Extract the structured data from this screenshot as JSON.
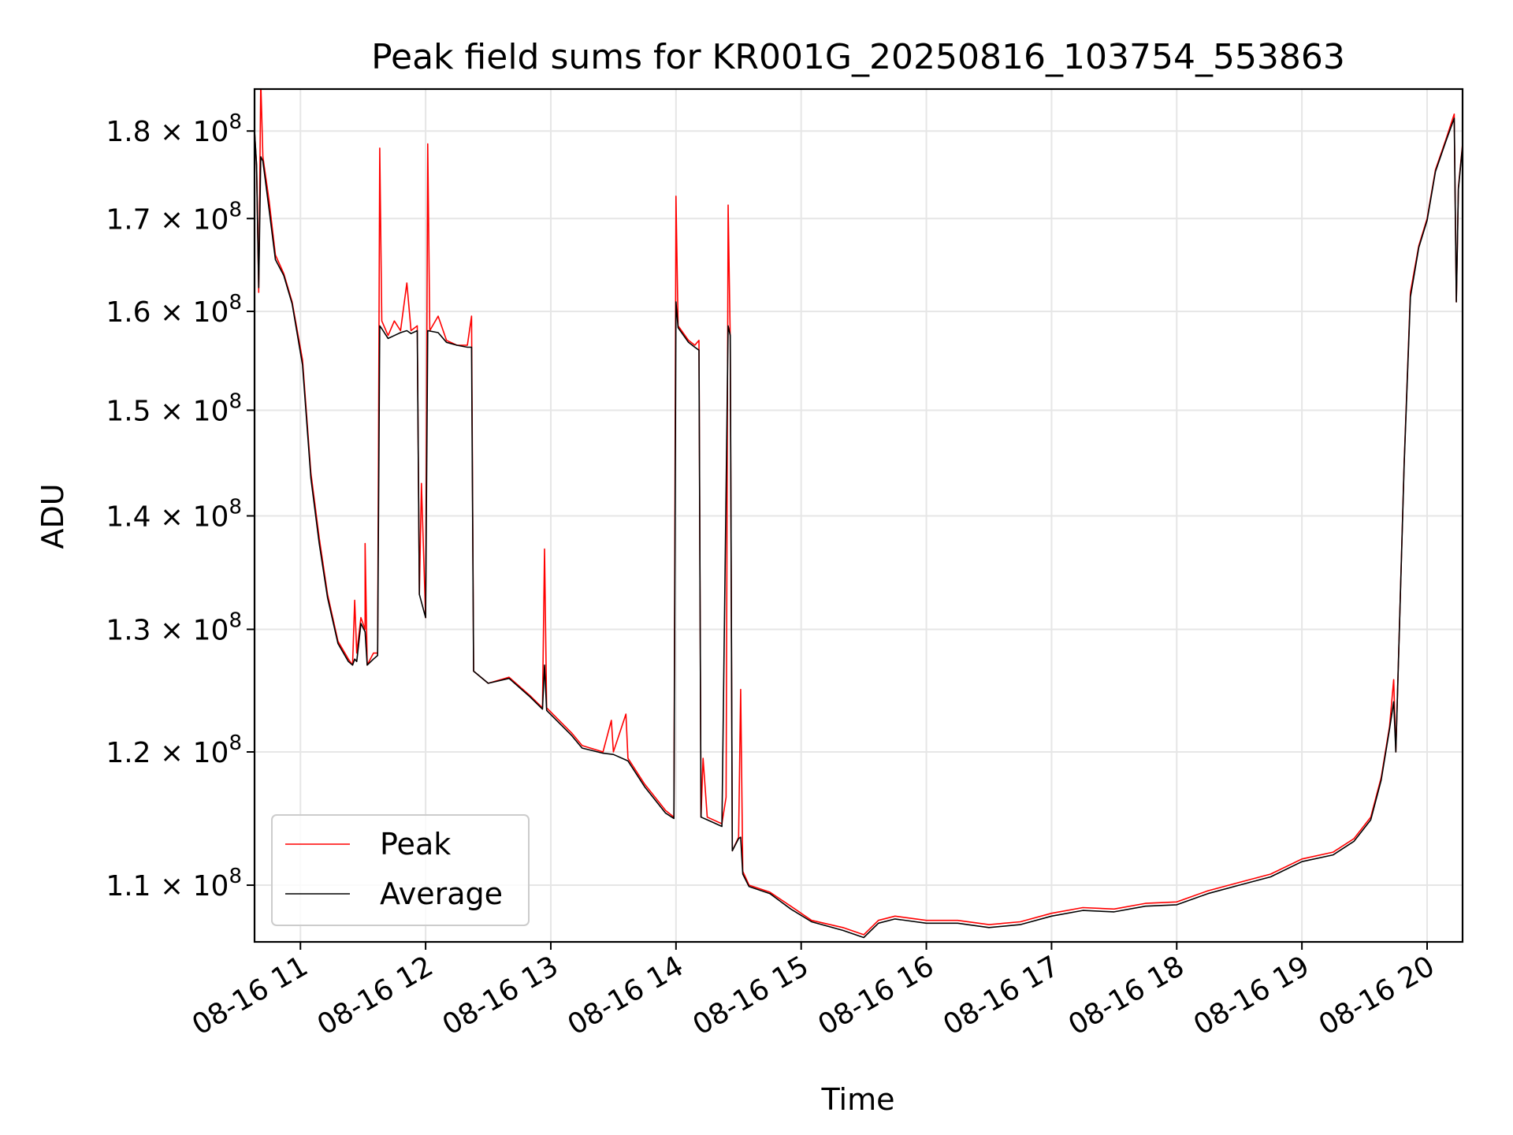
{
  "chart_data": {
    "type": "line",
    "title": "Peak field sums for KR001G_20250816_103754_553863",
    "xlabel": "Time",
    "ylabel": "ADU",
    "xlim": [
      "2025-08-16 10:38",
      "2025-08-16 20:17"
    ],
    "ylim": [
      106000000,
      185000000
    ],
    "yscale": "log",
    "grid": true,
    "legend_position": "lower-left",
    "x_ticks": [
      {
        "time": "2025-08-16 11:00",
        "label": "08-16 11"
      },
      {
        "time": "2025-08-16 12:00",
        "label": "08-16 12"
      },
      {
        "time": "2025-08-16 13:00",
        "label": "08-16 13"
      },
      {
        "time": "2025-08-16 14:00",
        "label": "08-16 14"
      },
      {
        "time": "2025-08-16 15:00",
        "label": "08-16 15"
      },
      {
        "time": "2025-08-16 16:00",
        "label": "08-16 16"
      },
      {
        "time": "2025-08-16 17:00",
        "label": "08-16 17"
      },
      {
        "time": "2025-08-16 18:00",
        "label": "08-16 18"
      },
      {
        "time": "2025-08-16 19:00",
        "label": "08-16 19"
      },
      {
        "time": "2025-08-16 20:00",
        "label": "08-16 20"
      }
    ],
    "y_ticks": [
      {
        "value": 110000000,
        "mantissa": "1.1",
        "exponent": "8"
      },
      {
        "value": 120000000,
        "mantissa": "1.2",
        "exponent": "8"
      },
      {
        "value": 130000000,
        "mantissa": "1.3",
        "exponent": "8"
      },
      {
        "value": 140000000,
        "mantissa": "1.4",
        "exponent": "8"
      },
      {
        "value": 150000000,
        "mantissa": "1.5",
        "exponent": "8"
      },
      {
        "value": 160000000,
        "mantissa": "1.6",
        "exponent": "8"
      },
      {
        "value": 170000000,
        "mantissa": "1.7",
        "exponent": "8"
      },
      {
        "value": 180000000,
        "mantissa": "1.8",
        "exponent": "8"
      }
    ],
    "series": [
      {
        "name": "Peak",
        "color": "#ff0000",
        "points": [
          [
            "2025-08-16 10:38",
            180000000
          ],
          [
            "2025-08-16 10:39",
            176000000
          ],
          [
            "2025-08-16 10:40",
            162000000
          ],
          [
            "2025-08-16 10:41",
            186000000
          ],
          [
            "2025-08-16 10:42",
            177000000
          ],
          [
            "2025-08-16 10:45",
            172000000
          ],
          [
            "2025-08-16 10:48",
            166000000
          ],
          [
            "2025-08-16 10:52",
            164000000
          ],
          [
            "2025-08-16 10:56",
            161000000
          ],
          [
            "2025-08-16 11:01",
            155000000
          ],
          [
            "2025-08-16 11:05",
            144000000
          ],
          [
            "2025-08-16 11:09",
            138000000
          ],
          [
            "2025-08-16 11:13",
            133000000
          ],
          [
            "2025-08-16 11:18",
            129000000
          ],
          [
            "2025-08-16 11:23",
            127500000
          ],
          [
            "2025-08-16 11:25",
            127000000
          ],
          [
            "2025-08-16 11:26",
            132500000
          ],
          [
            "2025-08-16 11:27",
            128000000
          ],
          [
            "2025-08-16 11:29",
            131000000
          ],
          [
            "2025-08-16 11:31",
            130000000
          ],
          [
            "2025-08-16 11:31",
            137500000
          ],
          [
            "2025-08-16 11:32",
            127000000
          ],
          [
            "2025-08-16 11:35",
            128000000
          ],
          [
            "2025-08-16 11:37",
            128000000
          ],
          [
            "2025-08-16 11:38",
            178000000
          ],
          [
            "2025-08-16 11:39",
            159000000
          ],
          [
            "2025-08-16 11:42",
            157500000
          ],
          [
            "2025-08-16 11:45",
            159000000
          ],
          [
            "2025-08-16 11:48",
            158000000
          ],
          [
            "2025-08-16 11:51",
            163000000
          ],
          [
            "2025-08-16 11:53",
            158000000
          ],
          [
            "2025-08-16 11:56",
            158500000
          ],
          [
            "2025-08-16 11:57",
            133000000
          ],
          [
            "2025-08-16 11:58",
            143000000
          ],
          [
            "2025-08-16 12:00",
            131000000
          ],
          [
            "2025-08-16 12:01",
            178500000
          ],
          [
            "2025-08-16 12:02",
            158000000
          ],
          [
            "2025-08-16 12:06",
            159500000
          ],
          [
            "2025-08-16 12:10",
            157000000
          ],
          [
            "2025-08-16 12:15",
            156500000
          ],
          [
            "2025-08-16 12:20",
            156500000
          ],
          [
            "2025-08-16 12:22",
            159500000
          ],
          [
            "2025-08-16 12:23",
            126500000
          ],
          [
            "2025-08-16 12:30",
            125500000
          ],
          [
            "2025-08-16 12:40",
            126000000
          ],
          [
            "2025-08-16 12:50",
            124500000
          ],
          [
            "2025-08-16 12:56",
            123500000
          ],
          [
            "2025-08-16 12:57",
            137000000
          ],
          [
            "2025-08-16 12:58",
            123500000
          ],
          [
            "2025-08-16 13:10",
            121500000
          ],
          [
            "2025-08-16 13:15",
            120500000
          ],
          [
            "2025-08-16 13:25",
            120000000
          ],
          [
            "2025-08-16 13:29",
            122500000
          ],
          [
            "2025-08-16 13:30",
            120000000
          ],
          [
            "2025-08-16 13:36",
            123000000
          ],
          [
            "2025-08-16 13:37",
            119500000
          ],
          [
            "2025-08-16 13:45",
            117500000
          ],
          [
            "2025-08-16 13:55",
            115500000
          ],
          [
            "2025-08-16 13:59",
            115000000
          ],
          [
            "2025-08-16 14:00",
            172500000
          ],
          [
            "2025-08-16 14:01",
            158500000
          ],
          [
            "2025-08-16 14:06",
            157000000
          ],
          [
            "2025-08-16 14:09",
            156500000
          ],
          [
            "2025-08-16 14:11",
            157000000
          ],
          [
            "2025-08-16 14:12",
            115000000
          ],
          [
            "2025-08-16 14:13",
            119500000
          ],
          [
            "2025-08-16 14:15",
            115000000
          ],
          [
            "2025-08-16 14:22",
            114500000
          ],
          [
            "2025-08-16 14:24",
            116500000
          ],
          [
            "2025-08-16 14:25",
            171500000
          ],
          [
            "2025-08-16 14:26",
            157000000
          ],
          [
            "2025-08-16 14:27",
            112500000
          ],
          [
            "2025-08-16 14:30",
            113500000
          ],
          [
            "2025-08-16 14:31",
            125000000
          ],
          [
            "2025-08-16 14:32",
            111000000
          ],
          [
            "2025-08-16 14:35",
            110000000
          ],
          [
            "2025-08-16 14:45",
            109500000
          ],
          [
            "2025-08-16 14:55",
            108500000
          ],
          [
            "2025-08-16 15:05",
            107500000
          ],
          [
            "2025-08-16 15:20",
            107000000
          ],
          [
            "2025-08-16 15:30",
            106500000
          ],
          [
            "2025-08-16 15:37",
            107500000
          ],
          [
            "2025-08-16 15:45",
            107800000
          ],
          [
            "2025-08-16 16:00",
            107500000
          ],
          [
            "2025-08-16 16:15",
            107500000
          ],
          [
            "2025-08-16 16:30",
            107200000
          ],
          [
            "2025-08-16 16:45",
            107400000
          ],
          [
            "2025-08-16 17:00",
            108000000
          ],
          [
            "2025-08-16 17:15",
            108400000
          ],
          [
            "2025-08-16 17:30",
            108300000
          ],
          [
            "2025-08-16 17:45",
            108700000
          ],
          [
            "2025-08-16 18:00",
            108800000
          ],
          [
            "2025-08-16 18:15",
            109600000
          ],
          [
            "2025-08-16 18:30",
            110200000
          ],
          [
            "2025-08-16 18:45",
            110800000
          ],
          [
            "2025-08-16 19:00",
            111900000
          ],
          [
            "2025-08-16 19:15",
            112400000
          ],
          [
            "2025-08-16 19:25",
            113400000
          ],
          [
            "2025-08-16 19:33",
            115000000
          ],
          [
            "2025-08-16 19:38",
            118000000
          ],
          [
            "2025-08-16 19:42",
            122000000
          ],
          [
            "2025-08-16 19:44",
            125800000
          ],
          [
            "2025-08-16 19:45",
            120000000
          ],
          [
            "2025-08-16 19:49",
            145000000
          ],
          [
            "2025-08-16 19:52",
            162000000
          ],
          [
            "2025-08-16 19:56",
            167000000
          ],
          [
            "2025-08-16 20:00",
            170000000
          ],
          [
            "2025-08-16 20:04",
            175500000
          ],
          [
            "2025-08-16 20:09",
            179000000
          ],
          [
            "2025-08-16 20:13",
            182000000
          ],
          [
            "2025-08-16 20:14",
            161000000
          ],
          [
            "2025-08-16 20:15",
            173500000
          ],
          [
            "2025-08-16 20:17",
            178500000
          ]
        ]
      },
      {
        "name": "Average",
        "color": "#000000",
        "points": [
          [
            "2025-08-16 10:38",
            180000000
          ],
          [
            "2025-08-16 10:39",
            176000000
          ],
          [
            "2025-08-16 10:40",
            162500000
          ],
          [
            "2025-08-16 10:41",
            177000000
          ],
          [
            "2025-08-16 10:42",
            176500000
          ],
          [
            "2025-08-16 10:45",
            171000000
          ],
          [
            "2025-08-16 10:48",
            165500000
          ],
          [
            "2025-08-16 10:52",
            163800000
          ],
          [
            "2025-08-16 10:56",
            160800000
          ],
          [
            "2025-08-16 11:01",
            154500000
          ],
          [
            "2025-08-16 11:05",
            143500000
          ],
          [
            "2025-08-16 11:09",
            137500000
          ],
          [
            "2025-08-16 11:13",
            132700000
          ],
          [
            "2025-08-16 11:18",
            128800000
          ],
          [
            "2025-08-16 11:23",
            127300000
          ],
          [
            "2025-08-16 11:25",
            127000000
          ],
          [
            "2025-08-16 11:26",
            127500000
          ],
          [
            "2025-08-16 11:27",
            127300000
          ],
          [
            "2025-08-16 11:29",
            130500000
          ],
          [
            "2025-08-16 11:31",
            129800000
          ],
          [
            "2025-08-16 11:32",
            127000000
          ],
          [
            "2025-08-16 11:35",
            127500000
          ],
          [
            "2025-08-16 11:37",
            127800000
          ],
          [
            "2025-08-16 11:38",
            158500000
          ],
          [
            "2025-08-16 11:39",
            158200000
          ],
          [
            "2025-08-16 11:42",
            157200000
          ],
          [
            "2025-08-16 11:45",
            157500000
          ],
          [
            "2025-08-16 11:48",
            157800000
          ],
          [
            "2025-08-16 11:51",
            158000000
          ],
          [
            "2025-08-16 11:53",
            157700000
          ],
          [
            "2025-08-16 11:56",
            158000000
          ],
          [
            "2025-08-16 11:57",
            133000000
          ],
          [
            "2025-08-16 12:00",
            131000000
          ],
          [
            "2025-08-16 12:01",
            158000000
          ],
          [
            "2025-08-16 12:06",
            157800000
          ],
          [
            "2025-08-16 12:10",
            156800000
          ],
          [
            "2025-08-16 12:15",
            156500000
          ],
          [
            "2025-08-16 12:20",
            156300000
          ],
          [
            "2025-08-16 12:22",
            156300000
          ],
          [
            "2025-08-16 12:23",
            126500000
          ],
          [
            "2025-08-16 12:30",
            125500000
          ],
          [
            "2025-08-16 12:40",
            125900000
          ],
          [
            "2025-08-16 12:50",
            124400000
          ],
          [
            "2025-08-16 12:56",
            123400000
          ],
          [
            "2025-08-16 12:57",
            127000000
          ],
          [
            "2025-08-16 12:58",
            123300000
          ],
          [
            "2025-08-16 13:10",
            121300000
          ],
          [
            "2025-08-16 13:15",
            120300000
          ],
          [
            "2025-08-16 13:25",
            119900000
          ],
          [
            "2025-08-16 13:30",
            119800000
          ],
          [
            "2025-08-16 13:37",
            119300000
          ],
          [
            "2025-08-16 13:45",
            117300000
          ],
          [
            "2025-08-16 13:55",
            115300000
          ],
          [
            "2025-08-16 13:59",
            114900000
          ],
          [
            "2025-08-16 14:00",
            161000000
          ],
          [
            "2025-08-16 14:01",
            158300000
          ],
          [
            "2025-08-16 14:06",
            156800000
          ],
          [
            "2025-08-16 14:09",
            156300000
          ],
          [
            "2025-08-16 14:11",
            156000000
          ],
          [
            "2025-08-16 14:12",
            115000000
          ],
          [
            "2025-08-16 14:15",
            114800000
          ],
          [
            "2025-08-16 14:22",
            114300000
          ],
          [
            "2025-08-16 14:25",
            158500000
          ],
          [
            "2025-08-16 14:26",
            157500000
          ],
          [
            "2025-08-16 14:27",
            112500000
          ],
          [
            "2025-08-16 14:30",
            113400000
          ],
          [
            "2025-08-16 14:31",
            113500000
          ],
          [
            "2025-08-16 14:32",
            110800000
          ],
          [
            "2025-08-16 14:35",
            109900000
          ],
          [
            "2025-08-16 14:45",
            109400000
          ],
          [
            "2025-08-16 14:55",
            108300000
          ],
          [
            "2025-08-16 15:05",
            107400000
          ],
          [
            "2025-08-16 15:20",
            106800000
          ],
          [
            "2025-08-16 15:30",
            106300000
          ],
          [
            "2025-08-16 15:37",
            107300000
          ],
          [
            "2025-08-16 15:45",
            107600000
          ],
          [
            "2025-08-16 16:00",
            107300000
          ],
          [
            "2025-08-16 16:15",
            107300000
          ],
          [
            "2025-08-16 16:30",
            107000000
          ],
          [
            "2025-08-16 16:45",
            107200000
          ],
          [
            "2025-08-16 17:00",
            107800000
          ],
          [
            "2025-08-16 17:15",
            108200000
          ],
          [
            "2025-08-16 17:30",
            108100000
          ],
          [
            "2025-08-16 17:45",
            108500000
          ],
          [
            "2025-08-16 18:00",
            108600000
          ],
          [
            "2025-08-16 18:15",
            109400000
          ],
          [
            "2025-08-16 18:30",
            110000000
          ],
          [
            "2025-08-16 18:45",
            110600000
          ],
          [
            "2025-08-16 19:00",
            111700000
          ],
          [
            "2025-08-16 19:15",
            112200000
          ],
          [
            "2025-08-16 19:25",
            113200000
          ],
          [
            "2025-08-16 19:33",
            114800000
          ],
          [
            "2025-08-16 19:38",
            117800000
          ],
          [
            "2025-08-16 19:42",
            121800000
          ],
          [
            "2025-08-16 19:44",
            124000000
          ],
          [
            "2025-08-16 19:45",
            120000000
          ],
          [
            "2025-08-16 19:49",
            144800000
          ],
          [
            "2025-08-16 19:52",
            161500000
          ],
          [
            "2025-08-16 19:56",
            166800000
          ],
          [
            "2025-08-16 20:00",
            169800000
          ],
          [
            "2025-08-16 20:04",
            175300000
          ],
          [
            "2025-08-16 20:09",
            178800000
          ],
          [
            "2025-08-16 20:13",
            181500000
          ],
          [
            "2025-08-16 20:14",
            161000000
          ],
          [
            "2025-08-16 20:15",
            173300000
          ],
          [
            "2025-08-16 20:17",
            178300000
          ]
        ]
      }
    ]
  }
}
